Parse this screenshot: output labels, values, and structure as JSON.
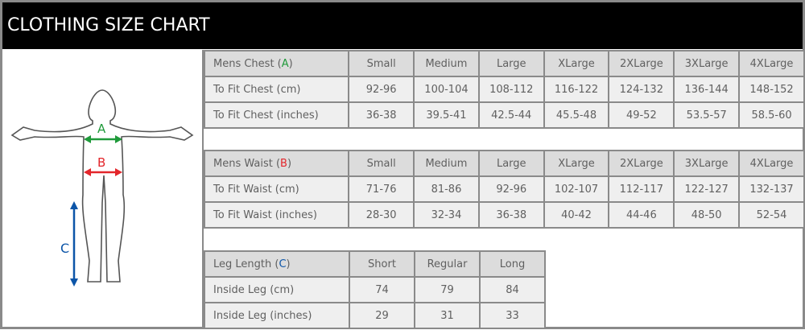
{
  "title": "CLOTHING SIZE CHART",
  "figure": {
    "labels": {
      "a": "A",
      "b": "B",
      "c": "C"
    },
    "colors": {
      "a": "#1f9a3a",
      "b": "#e3262b",
      "c": "#0c55a8"
    }
  },
  "chest": {
    "header": {
      "prefix": "Mens Chest (",
      "letter": "A",
      "suffix": ")"
    },
    "columns": [
      "Small",
      "Medium",
      "Large",
      "XLarge",
      "2XLarge",
      "3XLarge",
      "4XLarge"
    ],
    "rows": [
      {
        "label": "To Fit Chest (cm)",
        "values": [
          "92-96",
          "100-104",
          "108-112",
          "116-122",
          "124-132",
          "136-144",
          "148-152"
        ]
      },
      {
        "label": "To Fit Chest (inches)",
        "values": [
          "36-38",
          "39.5-41",
          "42.5-44",
          "45.5-48",
          "49-52",
          "53.5-57",
          "58.5-60"
        ]
      }
    ]
  },
  "waist": {
    "header": {
      "prefix": "Mens Waist (",
      "letter": "B",
      "suffix": ")"
    },
    "columns": [
      "Small",
      "Medium",
      "Large",
      "XLarge",
      "2XLarge",
      "3XLarge",
      "4XLarge"
    ],
    "rows": [
      {
        "label": "To Fit Waist (cm)",
        "values": [
          "71-76",
          "81-86",
          "92-96",
          "102-107",
          "112-117",
          "122-127",
          "132-137"
        ]
      },
      {
        "label": "To Fit Waist (inches)",
        "values": [
          "28-30",
          "32-34",
          "36-38",
          "40-42",
          "44-46",
          "48-50",
          "52-54"
        ]
      }
    ]
  },
  "leg": {
    "header": {
      "prefix": "Leg Length (",
      "letter": "C",
      "suffix": ")"
    },
    "columns": [
      "Short",
      "Regular",
      "Long"
    ],
    "rows": [
      {
        "label": "Inside Leg (cm)",
        "values": [
          "74",
          "79",
          "84"
        ]
      },
      {
        "label": "Inside Leg (inches)",
        "values": [
          "29",
          "31",
          "33"
        ]
      }
    ]
  }
}
